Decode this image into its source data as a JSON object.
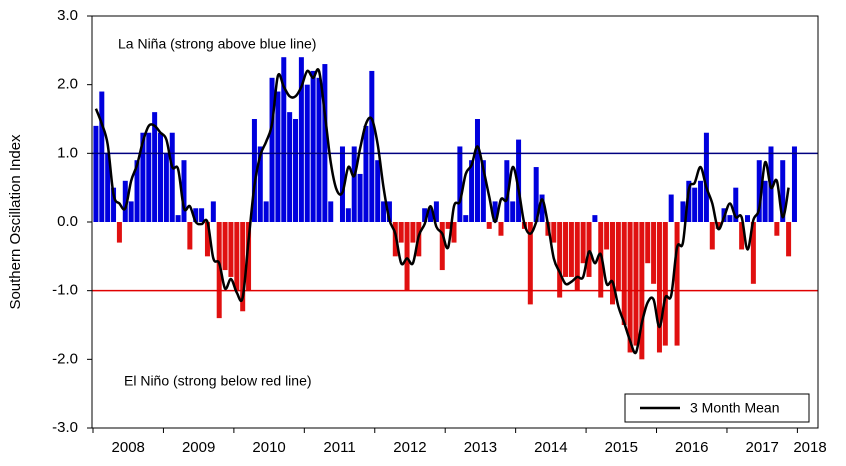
{
  "chart_data": {
    "type": "bar",
    "y_label": "Southern Oscillation Index",
    "annotations": [
      "La Niña (strong above blue line)",
      "El Niño (strong below red line)"
    ],
    "x_labels": [
      "2008",
      "2009",
      "2010",
      "2011",
      "2012",
      "2013",
      "2014",
      "2015",
      "2016",
      "2017",
      "2018"
    ],
    "months_per_label": 12,
    "ylim": [
      -3,
      3
    ],
    "yticks": [
      {
        "value": -3,
        "label": "-3.0"
      },
      {
        "value": -2,
        "label": "-2.0"
      },
      {
        "value": -1,
        "label": "-1.0"
      },
      {
        "value": 0,
        "label": "0.0"
      },
      {
        "value": 1,
        "label": "1.0"
      },
      {
        "value": 2,
        "label": "2.0"
      },
      {
        "value": 3,
        "label": "3.0"
      }
    ],
    "reference_lines": [
      {
        "value": 1,
        "color": "#000080"
      },
      {
        "value": -1,
        "color": "#e00000"
      }
    ],
    "bars": {
      "positive_color": "#0000dd",
      "negative_color": "#e01010",
      "values": [
        1.4,
        1.9,
        1.0,
        0.5,
        -0.3,
        0.6,
        0.3,
        0.9,
        1.3,
        1.3,
        1.6,
        1.3,
        1.0,
        1.3,
        0.1,
        0.9,
        -0.4,
        0.2,
        0.2,
        -0.5,
        0.3,
        -1.4,
        -0.7,
        -0.8,
        -1.0,
        -1.3,
        -1.0,
        1.5,
        1.1,
        0.3,
        2.1,
        1.9,
        2.4,
        1.6,
        1.5,
        2.4,
        2.0,
        2.2,
        2.1,
        2.3,
        0.3,
        0.0,
        1.1,
        0.2,
        1.1,
        0.7,
        1.4,
        2.2,
        0.9,
        0.3,
        0.3,
        -0.5,
        -0.3,
        -1.0,
        -0.3,
        -0.5,
        0.2,
        0.2,
        0.3,
        -0.7,
        -0.1,
        -0.3,
        1.1,
        0.1,
        0.9,
        1.5,
        0.9,
        -0.1,
        0.3,
        -0.2,
        0.9,
        0.3,
        1.2,
        -0.1,
        -1.2,
        0.8,
        0.4,
        -0.2,
        -0.3,
        -1.1,
        -0.8,
        -0.8,
        -1.0,
        -0.6,
        -0.8,
        0.1,
        -1.1,
        -0.4,
        -1.2,
        -1.0,
        -1.5,
        -1.9,
        -1.8,
        -2.0,
        -0.6,
        -0.9,
        -1.9,
        -1.8,
        0.4,
        -1.8,
        0.3,
        0.6,
        0.5,
        0.6,
        1.3,
        -0.4,
        -0.1,
        0.2,
        0.1,
        0.5,
        -0.4,
        0.1,
        -0.9,
        0.9,
        0.6,
        1.1,
        -0.2,
        0.9,
        -0.5,
        1.1
      ]
    },
    "series": [
      {
        "name": "3 Month Mean",
        "color": "#000000",
        "values": [
          1.65,
          1.43,
          1.13,
          0.4,
          0.27,
          0.2,
          0.6,
          0.83,
          1.17,
          1.4,
          1.4,
          1.3,
          1.2,
          0.8,
          0.77,
          0.2,
          0.23,
          0,
          -0.03,
          0,
          -0.53,
          -0.6,
          -0.97,
          -0.83,
          -1.03,
          -1.1,
          -0.27,
          0.53,
          0.97,
          1.17,
          1.43,
          2.13,
          1.97,
          1.83,
          1.83,
          1.97,
          2.2,
          2.1,
          2.2,
          1.57,
          0.87,
          0.47,
          0.43,
          0.8,
          0.67,
          1.07,
          1.43,
          1.5,
          1.13,
          0.5,
          0.03,
          -0.17,
          -0.6,
          -0.53,
          -0.6,
          -0.2,
          -0.03,
          0.23,
          -0.07,
          -0.17,
          -0.37,
          0.23,
          0.3,
          0.7,
          0.83,
          1.1,
          0.77,
          0.37,
          0,
          0.33,
          0.33,
          0.8,
          0.47,
          -0.03,
          -0.17,
          0,
          0.33,
          -0.03,
          -0.53,
          -0.73,
          -0.9,
          -0.87,
          -0.8,
          -0.8,
          -0.43,
          -0.6,
          -0.47,
          -0.9,
          -0.87,
          -1.23,
          -1.47,
          -1.73,
          -1.9,
          -1.47,
          -1.17,
          -1.13,
          -1.53,
          -1.1,
          -1.07,
          -0.37,
          -0.3,
          0.47,
          0.57,
          0.8,
          0.5,
          0.27,
          -0.1,
          0.07,
          0.27,
          0.07,
          0.07,
          -0.4,
          0.03,
          0.2,
          0.87,
          0.5,
          0.6,
          0.07,
          0.5,
          null
        ]
      }
    ],
    "legend": "lower right"
  }
}
